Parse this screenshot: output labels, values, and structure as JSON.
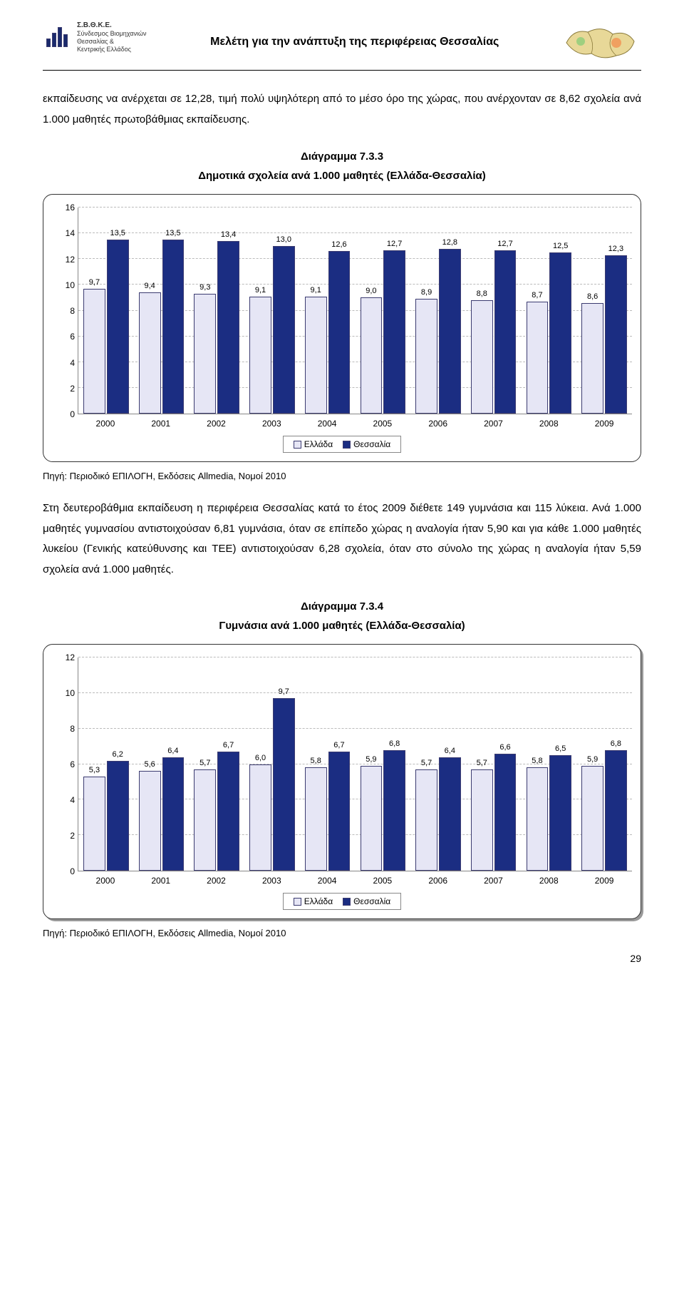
{
  "header": {
    "org_abbr": "Σ.Β.Θ.Κ.Ε.",
    "org_line1": "Σύνδεσμος Βιομηχανιών",
    "org_line2": "Θεσσαλίας &",
    "org_line3": "Κεντρικής Ελλάδος",
    "title": "Μελέτη για την ανάπτυξη της περιφέρειας Θεσσαλίας"
  },
  "text": {
    "p1": "εκπαίδευσης να ανέρχεται σε 12,28, τιμή  πολύ υψηλότερη  από το μέσο όρο της χώρας, που ανέρχονταν σε 8,62 σχολεία ανά 1.000 μαθητές πρωτοβάθμιας εκπαίδευσης.",
    "cap1_a": "Διάγραμμα 7.3.3",
    "cap1_b": "Δημοτικά σχολεία ανά 1.000 μαθητές (Ελλάδα-Θεσσαλία)",
    "source1": "Πηγή: Περιοδικό ΕΠΙΛΟΓΗ, Εκδόσεις Allmedia, Νομοί 2010",
    "p2": "Στη δευτεροβάθμια εκπαίδευση η περιφέρεια Θεσσαλίας κατά το έτος 2009 διέθετε 149 γυμνάσια και 115 λύκεια. Ανά 1.000 μαθητές γυμνασίου αντιστοιχούσαν 6,81 γυμνάσια,  όταν σε επίπεδο χώρας η αναλογία ήταν 5,90 και για κάθε 1.000 μαθητές λυκείου (Γενικής κατεύθυνσης και ΤΕΕ) αντιστοιχούσαν 6,28 σχολεία, όταν στο σύνολο της χώρας  η αναλογία  ήταν 5,59 σχολεία ανά 1.000 μαθητές.",
    "cap2_a": "Διάγραμμα 7.3.4",
    "cap2_b": "Γυμνάσια ανά 1.000 μαθητές (Ελλάδα-Θεσσαλία)",
    "source2": "Πηγή: Περιοδικό ΕΠΙΛΟΓΗ, Εκδόσεις Allmedia, Νομοί 2010",
    "page_num": "29"
  },
  "chart1": {
    "type": "bar",
    "ymax": 16,
    "ytick_step": 2,
    "yticks": [
      0,
      2,
      4,
      6,
      8,
      10,
      12,
      14,
      16
    ],
    "categories": [
      "2000",
      "2001",
      "2002",
      "2003",
      "2004",
      "2005",
      "2006",
      "2007",
      "2008",
      "2009"
    ],
    "series": [
      {
        "name": "Ελλάδα",
        "color": "#e6e6f5",
        "values": [
          9.7,
          9.4,
          9.3,
          9.1,
          9.1,
          9.0,
          8.9,
          8.8,
          8.7,
          8.6
        ],
        "labels": [
          "9,7",
          "9,4",
          "9,3",
          "9,1",
          "9,1",
          "9,0",
          "8,9",
          "8,8",
          "8,7",
          "8,6"
        ]
      },
      {
        "name": "Θεσσαλία",
        "color": "#1b2d82",
        "values": [
          13.5,
          13.5,
          13.4,
          13.0,
          12.6,
          12.7,
          12.8,
          12.7,
          12.5,
          12.3
        ],
        "labels": [
          "13,5",
          "13,5",
          "13,4",
          "13,0",
          "12,6",
          "12,7",
          "12,8",
          "12,7",
          "12,5",
          "12,3"
        ]
      }
    ],
    "grid_color": "#bbbbbb",
    "border_color": "#888888",
    "legend_a": "Ελλάδα",
    "legend_b": "Θεσσαλία"
  },
  "chart2": {
    "type": "bar",
    "ymax": 12,
    "ytick_step": 2,
    "yticks": [
      0,
      2,
      4,
      6,
      8,
      10,
      12
    ],
    "categories": [
      "2000",
      "2001",
      "2002",
      "2003",
      "2004",
      "2005",
      "2006",
      "2007",
      "2008",
      "2009"
    ],
    "series": [
      {
        "name": "Ελλάδα",
        "color": "#e6e6f5",
        "values": [
          5.3,
          5.6,
          5.7,
          6.0,
          5.8,
          5.9,
          5.7,
          5.7,
          5.8,
          5.9
        ],
        "labels": [
          "5,3",
          "5,6",
          "5,7",
          "6,0",
          "5,8",
          "5,9",
          "5,7",
          "5,7",
          "5,8",
          "5,9"
        ]
      },
      {
        "name": "Θεσσαλία",
        "color": "#1b2d82",
        "values": [
          6.2,
          6.4,
          6.7,
          9.7,
          6.7,
          6.8,
          6.4,
          6.6,
          6.5,
          6.8
        ],
        "labels": [
          "6,2",
          "6,4",
          "6,7",
          "9,7",
          "6,7",
          "6,8",
          "6,4",
          "6,6",
          "6,5",
          "6,8"
        ]
      }
    ],
    "grid_color": "#bbbbbb",
    "border_color": "#888888",
    "legend_a": "Ελλάδα",
    "legend_b": "Θεσσαλία"
  }
}
